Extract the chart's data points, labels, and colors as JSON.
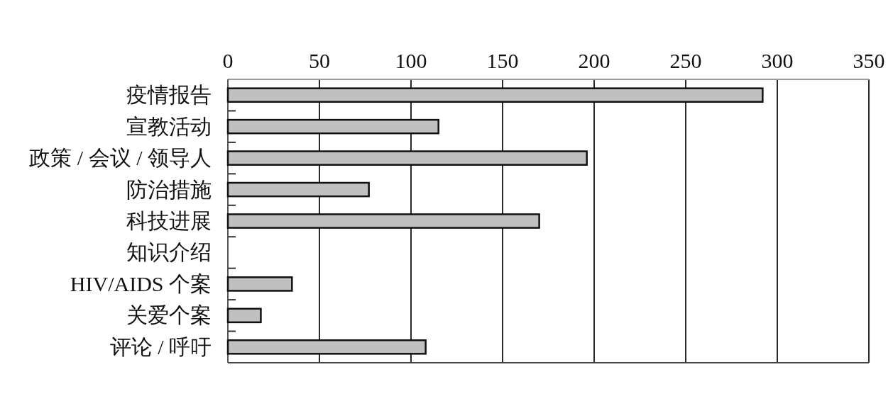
{
  "chart_data": {
    "type": "bar",
    "orientation": "horizontal",
    "categories": [
      "疫情报告",
      "宣教活动",
      "政策 / 会议 / 领导人",
      "防治措施",
      "科技进展",
      "知识介绍",
      "HIV/AIDS 个案",
      "关爱个案",
      "评论 / 呼吁"
    ],
    "values": [
      292,
      115,
      196,
      77,
      170,
      0,
      35,
      18,
      108
    ],
    "color": "#c0c0c0",
    "xlim": [
      0,
      350
    ],
    "xticks": [
      0,
      50,
      100,
      150,
      200,
      250,
      300,
      350
    ],
    "grid": "x"
  }
}
